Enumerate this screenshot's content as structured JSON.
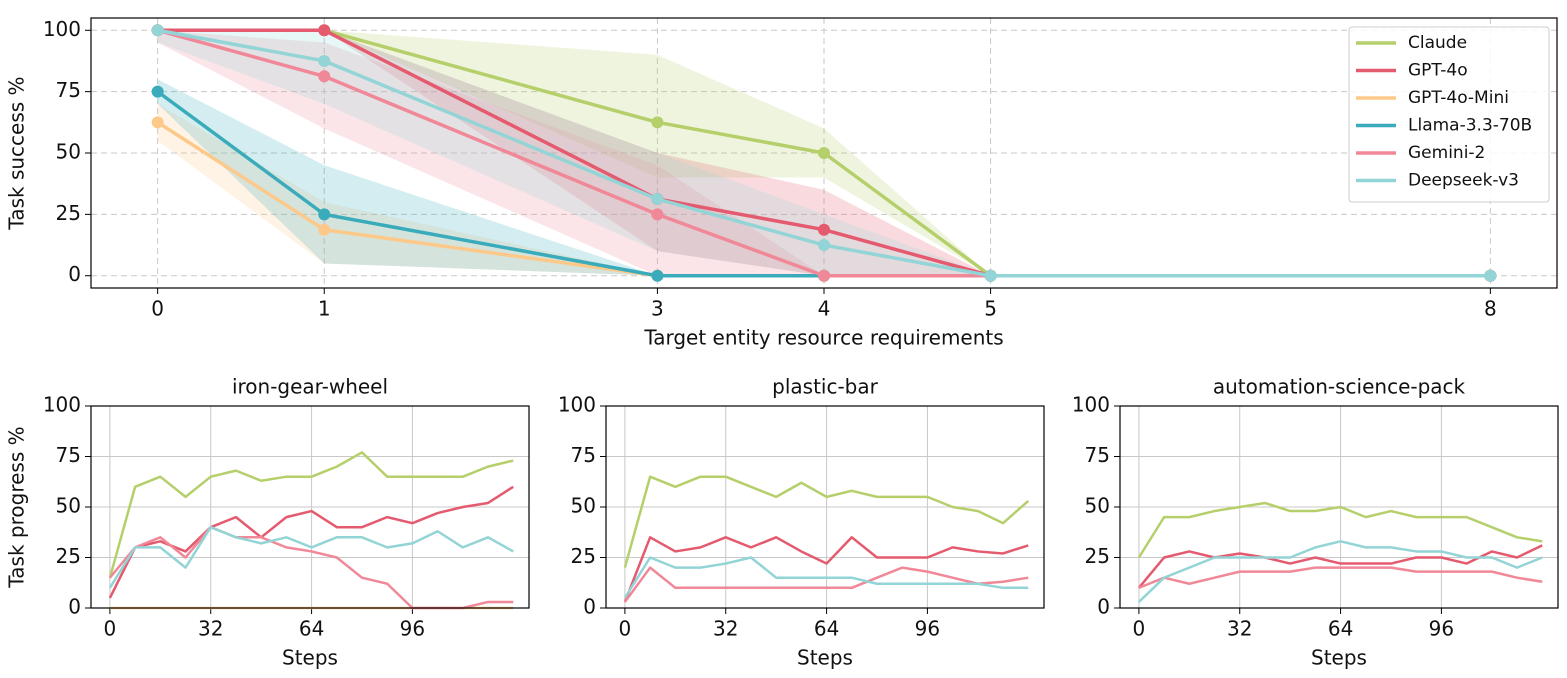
{
  "chart_data": [
    {
      "type": "line",
      "xlabel": "Target entity resource requirements",
      "ylabel": "Task success %",
      "x": [
        0,
        1,
        3,
        4,
        5,
        8
      ],
      "xlim": [
        -0.4,
        8.4
      ],
      "ylim": [
        -5,
        105
      ],
      "xticks": [
        0,
        1,
        3,
        4,
        5,
        8
      ],
      "yticks": [
        0,
        25,
        50,
        75,
        100
      ],
      "grid": "dashed",
      "legend": "upper right",
      "markers": true,
      "series": [
        {
          "name": "Claude",
          "color": "#b5cf6b",
          "values": [
            100,
            100,
            62.5,
            50,
            0,
            0
          ],
          "lower": [
            100,
            100,
            40,
            40,
            0,
            0
          ],
          "upper": [
            100,
            100,
            90,
            60,
            0,
            0
          ]
        },
        {
          "name": "GPT-4o",
          "color": "#e45a6e",
          "values": [
            100,
            100,
            31.25,
            18.75,
            0,
            0
          ],
          "lower": [
            100,
            100,
            10,
            0,
            0,
            0
          ],
          "upper": [
            100,
            100,
            50,
            35,
            0,
            0
          ]
        },
        {
          "name": "GPT-4o-Mini",
          "color": "#fdc98a",
          "values": [
            62.5,
            18.75,
            0,
            0,
            0,
            0
          ],
          "lower": [
            55,
            5,
            0,
            0,
            0,
            0
          ],
          "upper": [
            70,
            30,
            0,
            0,
            0,
            0
          ]
        },
        {
          "name": "Llama-3.3-70B",
          "color": "#3aabbb",
          "values": [
            75,
            25,
            0,
            0,
            0,
            0
          ],
          "lower": [
            70,
            5,
            0,
            0,
            0,
            0
          ],
          "upper": [
            80,
            45,
            0,
            0,
            0,
            0
          ]
        },
        {
          "name": "Gemini-2",
          "color": "#f08898",
          "values": [
            100,
            81.25,
            25,
            0,
            0,
            0
          ],
          "lower": [
            95,
            60,
            0,
            0,
            0,
            0
          ],
          "upper": [
            100,
            95,
            45,
            0,
            0,
            0
          ]
        },
        {
          "name": "Deepseek-v3",
          "color": "#93d4d6",
          "values": [
            100,
            87.5,
            31.25,
            12.5,
            0,
            0
          ],
          "lower": [
            95,
            70,
            10,
            0,
            0,
            0
          ],
          "upper": [
            100,
            100,
            50,
            25,
            0,
            0
          ]
        }
      ]
    },
    {
      "type": "line",
      "title": "iron-gear-wheel",
      "xlabel": "Steps",
      "ylabel": "Task progress %",
      "x": [
        0,
        8,
        16,
        24,
        32,
        40,
        48,
        56,
        64,
        72,
        80,
        88,
        96,
        104,
        112,
        120,
        128
      ],
      "xlim": [
        -6,
        133
      ],
      "ylim": [
        0,
        100
      ],
      "xticks": [
        0,
        32,
        64,
        96
      ],
      "yticks": [
        0,
        25,
        50,
        75,
        100
      ],
      "grid": "solid",
      "series": [
        {
          "color": "#fdc98a",
          "values": [
            0,
            0,
            0,
            0,
            0,
            0,
            0,
            0,
            0,
            0,
            0,
            0,
            0,
            0,
            0,
            0,
            0
          ]
        },
        {
          "color": "#b5cf6b",
          "values": [
            15,
            60,
            65,
            55,
            65,
            68,
            63,
            65,
            65,
            70,
            77,
            65,
            65,
            65,
            65,
            70,
            73
          ]
        },
        {
          "color": "#e45a6e",
          "values": [
            5,
            30,
            33,
            28,
            40,
            45,
            35,
            45,
            48,
            40,
            40,
            45,
            42,
            47,
            50,
            52,
            60
          ]
        },
        {
          "color": "#f08898",
          "values": [
            15,
            30,
            35,
            25,
            40,
            35,
            35,
            30,
            28,
            25,
            15,
            12,
            0,
            0,
            0,
            3,
            3
          ]
        },
        {
          "color": "#93d4d6",
          "values": [
            10,
            30,
            30,
            20,
            40,
            35,
            32,
            35,
            30,
            35,
            35,
            30,
            32,
            38,
            30,
            35,
            28
          ]
        }
      ]
    },
    {
      "type": "line",
      "title": "plastic-bar",
      "xlabel": "Steps",
      "x": [
        0,
        8,
        16,
        24,
        32,
        40,
        48,
        56,
        64,
        72,
        80,
        88,
        96,
        104,
        112,
        120,
        128
      ],
      "xlim": [
        -6,
        133
      ],
      "ylim": [
        0,
        100
      ],
      "xticks": [
        0,
        32,
        64,
        96
      ],
      "yticks": [
        0,
        25,
        50,
        75,
        100
      ],
      "grid": "solid",
      "series": [
        {
          "color": "#b5cf6b",
          "values": [
            20,
            65,
            60,
            65,
            65,
            60,
            55,
            62,
            55,
            58,
            55,
            55,
            55,
            50,
            48,
            42,
            53
          ]
        },
        {
          "color": "#e45a6e",
          "values": [
            3,
            35,
            28,
            30,
            35,
            30,
            35,
            28,
            22,
            35,
            25,
            25,
            25,
            30,
            28,
            27,
            31
          ]
        },
        {
          "color": "#f08898",
          "values": [
            3,
            20,
            10,
            10,
            10,
            10,
            10,
            10,
            10,
            10,
            15,
            20,
            18,
            15,
            12,
            13,
            15
          ]
        },
        {
          "color": "#93d4d6",
          "values": [
            5,
            25,
            20,
            20,
            22,
            25,
            15,
            15,
            15,
            15,
            12,
            12,
            12,
            12,
            12,
            10,
            10
          ]
        }
      ]
    },
    {
      "type": "line",
      "title": "automation-science-pack",
      "xlabel": "Steps",
      "x": [
        0,
        8,
        16,
        24,
        32,
        40,
        48,
        56,
        64,
        72,
        80,
        88,
        96,
        104,
        112,
        120,
        128
      ],
      "xlim": [
        -6,
        133
      ],
      "ylim": [
        0,
        100
      ],
      "xticks": [
        0,
        32,
        64,
        96
      ],
      "yticks": [
        0,
        25,
        50,
        75,
        100
      ],
      "grid": "solid",
      "series": [
        {
          "color": "#b5cf6b",
          "values": [
            25,
            45,
            45,
            48,
            50,
            52,
            48,
            48,
            50,
            45,
            48,
            45,
            45,
            45,
            40,
            35,
            33
          ]
        },
        {
          "color": "#e45a6e",
          "values": [
            10,
            25,
            28,
            25,
            27,
            25,
            22,
            25,
            22,
            22,
            22,
            25,
            25,
            22,
            28,
            25,
            31
          ]
        },
        {
          "color": "#f08898",
          "values": [
            10,
            15,
            12,
            15,
            18,
            18,
            18,
            20,
            20,
            20,
            20,
            18,
            18,
            18,
            18,
            15,
            13
          ]
        },
        {
          "color": "#93d4d6",
          "values": [
            3,
            15,
            20,
            25,
            25,
            25,
            25,
            30,
            33,
            30,
            30,
            28,
            28,
            25,
            25,
            20,
            25
          ]
        }
      ]
    }
  ]
}
